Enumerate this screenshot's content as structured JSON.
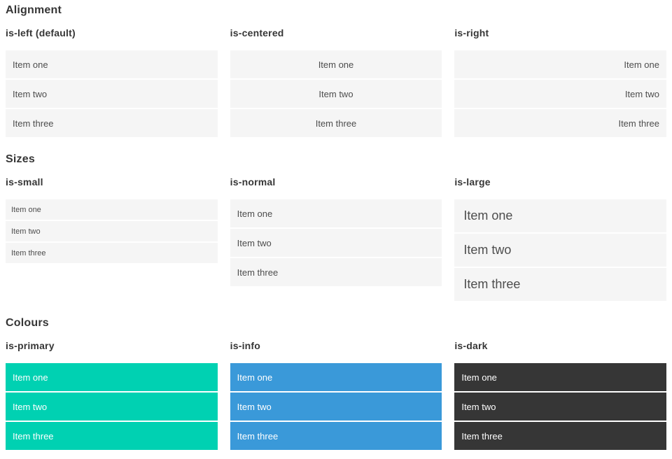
{
  "colors": {
    "item_bg": "#f5f5f5",
    "item_text": "#4d4d4d",
    "item_text_on_color": "#ffffff",
    "heading_text": "#363636",
    "primary": "#00d1b2",
    "info": "#3a99d9",
    "dark": "#363636"
  },
  "sections": [
    {
      "title": "Alignment",
      "groups": [
        {
          "label": "is-left (default)",
          "variant": "is-left",
          "items": [
            "Item one",
            "Item two",
            "Item three"
          ]
        },
        {
          "label": "is-centered",
          "variant": "is-centered",
          "items": [
            "Item one",
            "Item two",
            "Item three"
          ]
        },
        {
          "label": "is-right",
          "variant": "is-right",
          "items": [
            "Item one",
            "Item two",
            "Item three"
          ]
        }
      ]
    },
    {
      "title": "Sizes",
      "groups": [
        {
          "label": "is-small",
          "variant": "is-small",
          "items": [
            "Item one",
            "Item two",
            "Item three"
          ]
        },
        {
          "label": "is-normal",
          "variant": "is-normal",
          "items": [
            "Item one",
            "Item two",
            "Item three"
          ]
        },
        {
          "label": "is-large",
          "variant": "is-large",
          "items": [
            "Item one",
            "Item two",
            "Item three"
          ]
        }
      ]
    },
    {
      "title": "Colours",
      "groups": [
        {
          "label": "is-primary",
          "variant": "is-primary",
          "items": [
            "Item one",
            "Item two",
            "Item three"
          ]
        },
        {
          "label": "is-info",
          "variant": "is-info",
          "items": [
            "Item one",
            "Item two",
            "Item three"
          ]
        },
        {
          "label": "is-dark",
          "variant": "is-dark",
          "items": [
            "Item one",
            "Item two",
            "Item three"
          ]
        }
      ]
    }
  ]
}
